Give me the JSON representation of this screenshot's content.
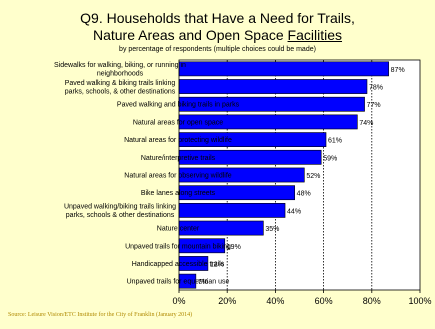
{
  "chart_data": {
    "type": "bar",
    "orientation": "horizontal",
    "title_line1": "Q9. Households that Have a Need for Trails,",
    "title_line2_pre": "Nature Areas and Open Space ",
    "title_line2_underlined": "Facilities",
    "subtitle": "by percentage of respondents (multiple choices could be made)",
    "categories": [
      [
        "Sidewalks for walking, biking, or running in",
        "neighborhoods"
      ],
      [
        "Paved walking & biking trails linking",
        "parks, schools, & other destinations"
      ],
      [
        "Paved walking and biking trails in parks"
      ],
      [
        "Natural areas for open space"
      ],
      [
        "Natural areas for protecting wildlife"
      ],
      [
        "Nature/interpretive trails"
      ],
      [
        "Natural areas for observing wildlife"
      ],
      [
        "Bike lanes along streets"
      ],
      [
        "Unpaved walking/biking trails linking",
        "parks, schools & other destinations"
      ],
      [
        "Nature center"
      ],
      [
        "Unpaved trails for mountain biking"
      ],
      [
        "Handicapped accessible trails"
      ],
      [
        "Unpaved trails for equestrian use"
      ]
    ],
    "values": [
      87,
      78,
      77,
      74,
      61,
      59,
      52,
      48,
      44,
      35,
      19,
      12,
      7
    ],
    "value_labels": [
      "87%",
      "78%",
      "77%",
      "74%",
      "61%",
      "59%",
      "52%",
      "48%",
      "44%",
      "35%",
      "19%",
      "12%",
      "7%"
    ],
    "xlim": [
      0,
      100
    ],
    "xticks": [
      0,
      20,
      40,
      60,
      80,
      100
    ],
    "xtick_labels": [
      "0%",
      "20%",
      "40%",
      "60%",
      "80%",
      "100%"
    ],
    "grid": "vertical dotted",
    "bar_color": "#0000ff",
    "background_color": "#ffffcc",
    "plot_background_color": "#ffffff"
  },
  "source": "Source:  Leisure Vision/ETC Institute for the City of Franklin (January 2014)"
}
